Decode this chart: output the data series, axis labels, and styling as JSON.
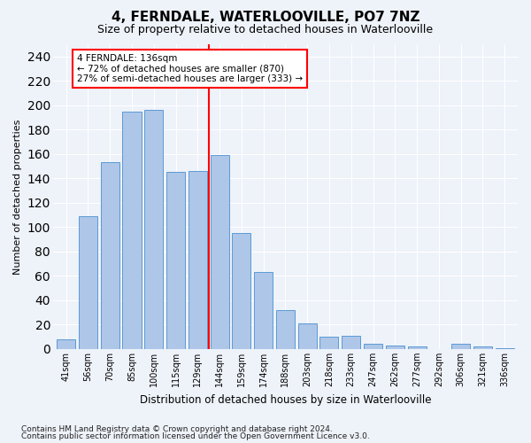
{
  "title": "4, FERNDALE, WATERLOOVILLE, PO7 7NZ",
  "subtitle": "Size of property relative to detached houses in Waterlooville",
  "xlabel": "Distribution of detached houses by size in Waterlooville",
  "ylabel": "Number of detached properties",
  "categories": [
    "41sqm",
    "56sqm",
    "70sqm",
    "85sqm",
    "100sqm",
    "115sqm",
    "129sqm",
    "144sqm",
    "159sqm",
    "174sqm",
    "188sqm",
    "203sqm",
    "218sqm",
    "233sqm",
    "247sqm",
    "262sqm",
    "277sqm",
    "292sqm",
    "306sqm",
    "321sqm",
    "336sqm"
  ],
  "values": [
    8,
    109,
    153,
    195,
    196,
    145,
    146,
    159,
    95,
    63,
    32,
    21,
    10,
    11,
    4,
    3,
    2,
    0,
    4,
    2,
    1
  ],
  "bar_color": "#aec6e8",
  "bar_edge_color": "#5b9bd5",
  "vline_x_index": 7,
  "vline_color": "red",
  "annotation_text": "4 FERNDALE: 136sqm\n← 72% of detached houses are smaller (870)\n27% of semi-detached houses are larger (333) →",
  "annotation_box_color": "white",
  "annotation_box_edge_color": "red",
  "ylim": [
    0,
    250
  ],
  "yticks": [
    0,
    20,
    40,
    60,
    80,
    100,
    120,
    140,
    160,
    180,
    200,
    220,
    240
  ],
  "footnote1": "Contains HM Land Registry data © Crown copyright and database right 2024.",
  "footnote2": "Contains public sector information licensed under the Open Government Licence v3.0.",
  "bg_color": "#eef2f9",
  "grid_color": "white",
  "title_fontsize": 11,
  "subtitle_fontsize": 9,
  "xlabel_fontsize": 8.5,
  "ylabel_fontsize": 8,
  "tick_fontsize": 7,
  "footnote_fontsize": 6.5,
  "annot_fontsize": 7.5
}
